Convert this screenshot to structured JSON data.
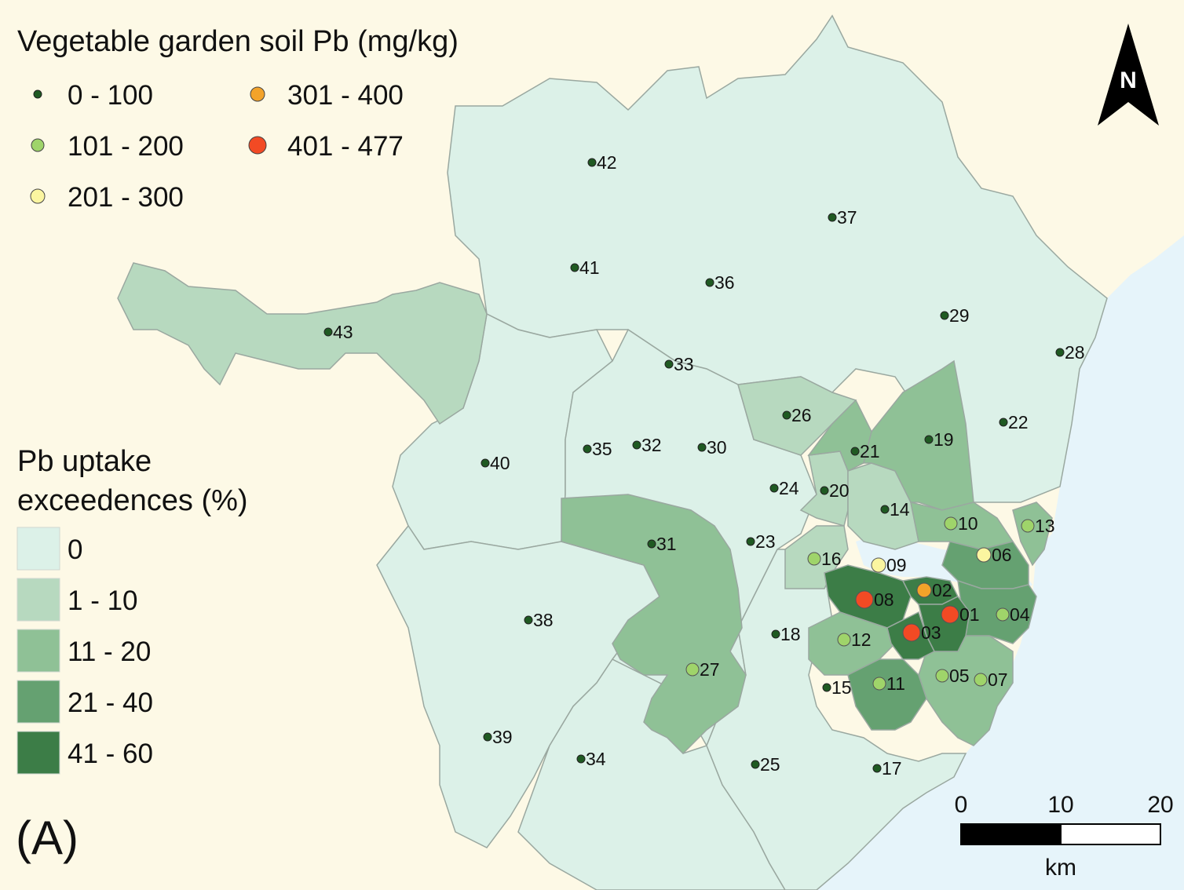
{
  "map_title": "Vegetable garden soil Pb (mg/kg)",
  "pb_legend": [
    {
      "label": "0 - 100",
      "color": "#1f5a22"
    },
    {
      "label": "101 - 200",
      "color": "#9fd46a"
    },
    {
      "label": "201 - 300",
      "color": "#fbf5a0"
    },
    {
      "label": "301 - 400",
      "color": "#f3a32a"
    },
    {
      "label": "401 - 477",
      "color": "#f24a24"
    }
  ],
  "uptake_legend_title_line1": "Pb uptake",
  "uptake_legend_title_line2": "exceedences (%)",
  "uptake_legend": [
    {
      "label": "0",
      "color": "#dcf1e8"
    },
    {
      "label": "1 - 10",
      "color": "#b7d9bf"
    },
    {
      "label": "11 - 20",
      "color": "#8fc196"
    },
    {
      "label": "21 - 40",
      "color": "#65a171"
    },
    {
      "label": "41 - 60",
      "color": "#3c7d47"
    }
  ],
  "panel_label": "(A)",
  "north_label": "N",
  "scale": {
    "ticks": [
      "0",
      "10",
      "20"
    ],
    "unit": "km"
  },
  "colors": {
    "land": "#fdf9e6",
    "water": "#e6f4fa",
    "boundary": "#9aa8a0"
  },
  "sites": [
    {
      "id": "01",
      "class": 4
    },
    {
      "id": "02",
      "class": 3
    },
    {
      "id": "03",
      "class": 4
    },
    {
      "id": "04",
      "class": 1
    },
    {
      "id": "05",
      "class": 1
    },
    {
      "id": "06",
      "class": 2
    },
    {
      "id": "07",
      "class": 1
    },
    {
      "id": "08",
      "class": 4
    },
    {
      "id": "09",
      "class": 2
    },
    {
      "id": "10",
      "class": 1
    },
    {
      "id": "11",
      "class": 1
    },
    {
      "id": "12",
      "class": 1
    },
    {
      "id": "13",
      "class": 1
    },
    {
      "id": "14",
      "class": 0
    },
    {
      "id": "15",
      "class": 0
    },
    {
      "id": "16",
      "class": 1
    },
    {
      "id": "17",
      "class": 0
    },
    {
      "id": "18",
      "class": 0
    },
    {
      "id": "19",
      "class": 0
    },
    {
      "id": "20",
      "class": 0
    },
    {
      "id": "21",
      "class": 0
    },
    {
      "id": "22",
      "class": 0
    },
    {
      "id": "23",
      "class": 0
    },
    {
      "id": "24",
      "class": 0
    },
    {
      "id": "25",
      "class": 0
    },
    {
      "id": "26",
      "class": 0
    },
    {
      "id": "27",
      "class": 1
    },
    {
      "id": "28",
      "class": 0
    },
    {
      "id": "29",
      "class": 0
    },
    {
      "id": "30",
      "class": 0
    },
    {
      "id": "31",
      "class": 0
    },
    {
      "id": "32",
      "class": 0
    },
    {
      "id": "33",
      "class": 0
    },
    {
      "id": "34",
      "class": 0
    },
    {
      "id": "35",
      "class": 0
    },
    {
      "id": "36",
      "class": 0
    },
    {
      "id": "37",
      "class": 0
    },
    {
      "id": "38",
      "class": 0
    },
    {
      "id": "39",
      "class": 0
    },
    {
      "id": "40",
      "class": 0
    },
    {
      "id": "41",
      "class": 0
    },
    {
      "id": "42",
      "class": 0
    },
    {
      "id": "43",
      "class": 0
    }
  ]
}
